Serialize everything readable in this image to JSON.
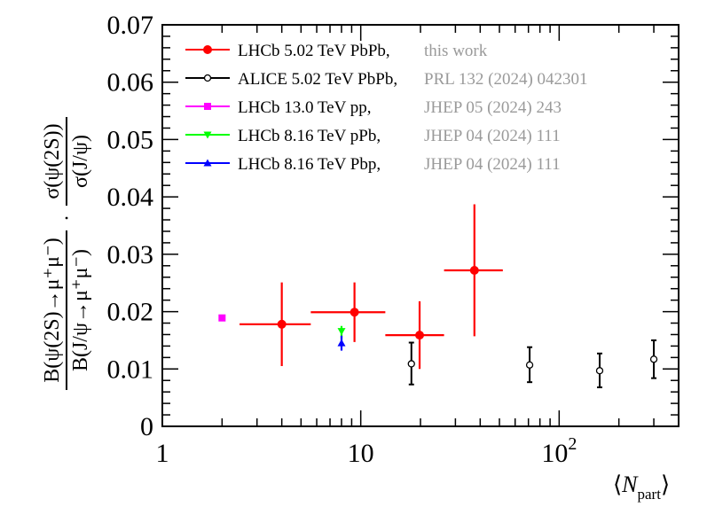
{
  "chart_data": {
    "type": "scatter",
    "title": "",
    "x_scale": "log",
    "xlim": [
      1,
      400
    ],
    "ylim": [
      0,
      0.07
    ],
    "y_ticks": [
      "0",
      "0.01",
      "0.02",
      "0.03",
      "0.04",
      "0.05",
      "0.06",
      "0.07"
    ],
    "x_ticks": [
      {
        "value": 1,
        "base": "1",
        "exp": ""
      },
      {
        "value": 10,
        "base": "10",
        "exp": ""
      },
      {
        "value": 100,
        "base": "10",
        "exp": "2"
      }
    ],
    "xlabel": {
      "main": "N",
      "sub": "part"
    },
    "ylabel": {
      "left_num": "B(ψ(2S)→μ⁺μ⁻)",
      "left_den": "B(J/ψ→μ⁺μ⁻)",
      "dot": "·",
      "right_num": "σ(ψ(2S))",
      "right_den": "σ(J/ψ)"
    },
    "legend_position": "top-left",
    "series": [
      {
        "name": "LHCb 5.02 TeV PbPb,",
        "ref": "this work",
        "color": "#ff0000",
        "marker": "circle-filled",
        "points": [
          {
            "x": 4.0,
            "xlo": 2.45,
            "xhi": 5.6,
            "y": 0.0178,
            "ylo": 0.0105,
            "yhi": 0.0251
          },
          {
            "x": 9.3,
            "xlo": 5.6,
            "xhi": 13.3,
            "y": 0.0199,
            "ylo": 0.0147,
            "yhi": 0.0251
          },
          {
            "x": 19.8,
            "xlo": 13.3,
            "xhi": 26.3,
            "y": 0.0159,
            "ylo": 0.01,
            "yhi": 0.0218
          },
          {
            "x": 37.4,
            "xlo": 26.3,
            "xhi": 52.0,
            "y": 0.0272,
            "ylo": 0.0157,
            "yhi": 0.0387
          }
        ]
      },
      {
        "name": "ALICE 5.02 TeV PbPb,",
        "ref": "PRL 132 (2024) 042301",
        "color": "#000000",
        "marker": "circle-open",
        "points": [
          {
            "x": 18.0,
            "y": 0.0109,
            "ylo": 0.0073,
            "yhi": 0.0146
          },
          {
            "x": 71.0,
            "y": 0.0107,
            "ylo": 0.0077,
            "yhi": 0.0138
          },
          {
            "x": 160.0,
            "y": 0.0097,
            "ylo": 0.0068,
            "yhi": 0.0127
          },
          {
            "x": 300.0,
            "y": 0.0117,
            "ylo": 0.0084,
            "yhi": 0.015
          }
        ]
      },
      {
        "name": "LHCb 13.0 TeV pp,",
        "ref": "JHEP 05 (2024) 243",
        "color": "#ff00ff",
        "marker": "square-filled",
        "points": [
          {
            "x": 2.0,
            "y": 0.0189,
            "ylo": 0.0187,
            "yhi": 0.0191
          }
        ]
      },
      {
        "name": "LHCb 8.16 TeV pPb,",
        "ref": "JHEP 04 (2024) 111",
        "color": "#00ff00",
        "marker": "triangle-down-filled",
        "points": [
          {
            "x": 8.0,
            "y": 0.0166,
            "ylo": 0.0153,
            "yhi": 0.0175
          }
        ]
      },
      {
        "name": "LHCb 8.16 TeV Pbp,",
        "ref": "JHEP 04 (2024) 111",
        "color": "#0000ff",
        "marker": "triangle-up-filled",
        "points": [
          {
            "x": 8.0,
            "y": 0.0145,
            "ylo": 0.0132,
            "yhi": 0.0158
          }
        ]
      }
    ]
  }
}
